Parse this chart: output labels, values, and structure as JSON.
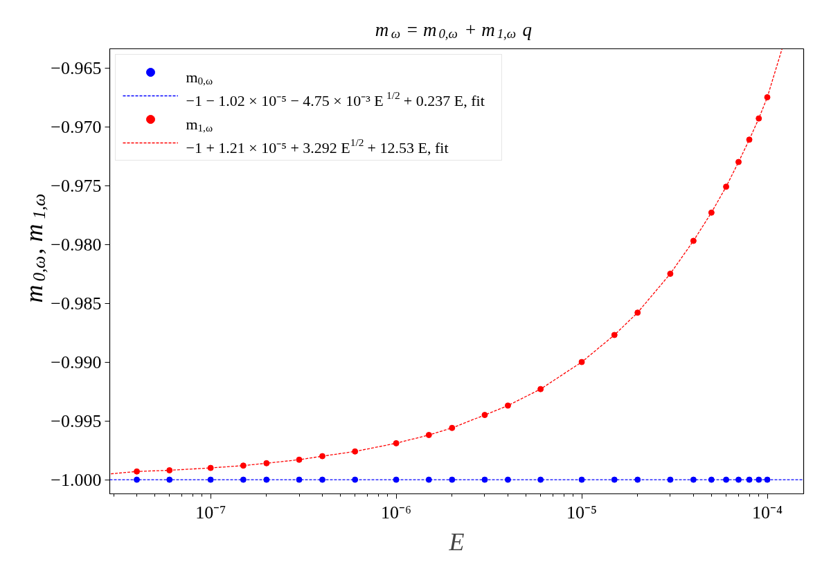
{
  "chart_data": {
    "type": "scatter",
    "title": "m$_{ω}$ = m$_{0,ω}$ + m$_{1,ω}$ q",
    "xlabel": "E",
    "ylabel": "m$_{0,ω}$, m$_{1,ω}$",
    "log": "x",
    "grid": false,
    "legend": "top left",
    "marker": "circle",
    "xlim": [
      2.86e-08,
      0.000157
    ],
    "ylim": [
      -1.0012,
      -0.96338
    ],
    "xticks": [
      {
        "value": 1e-07,
        "label": "10⁻⁷"
      },
      {
        "value": 1e-06,
        "label": "10⁻⁶"
      },
      {
        "value": 1e-05,
        "label": "10⁻⁵"
      },
      {
        "value": 0.0001,
        "label": "10⁻⁴"
      }
    ],
    "yticks": [
      {
        "value": -1.0,
        "label": "−1.000"
      },
      {
        "value": -0.995,
        "label": "−0.995"
      },
      {
        "value": -0.99,
        "label": "−0.990"
      },
      {
        "value": -0.985,
        "label": "−0.985"
      },
      {
        "value": -0.98,
        "label": "−0.980"
      },
      {
        "value": -0.975,
        "label": "−0.975"
      },
      {
        "value": -0.97,
        "label": "−0.970"
      },
      {
        "value": -0.965,
        "label": "−0.965"
      }
    ],
    "series": [
      {
        "name": "m$_{0,ω}$",
        "color": "#0000ff",
        "x": [
          4e-08,
          6e-08,
          1e-07,
          1.5e-07,
          2e-07,
          3e-07,
          4e-07,
          6e-07,
          1e-06,
          1.5e-06,
          2e-06,
          3e-06,
          4e-06,
          6e-06,
          1e-05,
          1.5e-05,
          2e-05,
          3e-05,
          4e-05,
          5e-05,
          6e-05,
          7e-05,
          8e-05,
          9e-05,
          0.0001
        ],
        "values": [
          -1.0,
          -1.0,
          -1.0,
          -1.0,
          -1.0,
          -1.0,
          -1.0,
          -1.0,
          -1.0,
          -1.0,
          -1.0,
          -1.0,
          -1.0,
          -1.0,
          -1.0,
          -1.0,
          -1.0,
          -1.0,
          -1.0,
          -1.0,
          -1.0,
          -1.0,
          -1.0,
          -1.0,
          -1.0
        ]
      },
      {
        "type": "line",
        "line_style": "dashed",
        "marker": "none",
        "name": "−1 − 1.02 × 10⁻⁵ − 4.75 × 10⁻³ E$^{1/2}$ + 0.237 E, fit",
        "color": "#0000ff",
        "x": [
          2.86e-08,
          0.000157
        ],
        "values": [
          -1.0,
          -1.0
        ]
      },
      {
        "name": "m$_{1,ω}$",
        "color": "#ff0000",
        "x": [
          4e-08,
          6e-08,
          1e-07,
          1.5e-07,
          2e-07,
          3e-07,
          4e-07,
          6e-07,
          1e-06,
          1.5e-06,
          2e-06,
          3e-06,
          4e-06,
          6e-06,
          1e-05,
          1.5e-05,
          2e-05,
          3e-05,
          4e-05,
          5e-05,
          6e-05,
          7e-05,
          8e-05,
          9e-05,
          0.0001
        ],
        "values": [
          -0.9993,
          -0.9992,
          -0.999,
          -0.9988,
          -0.9986,
          -0.9983,
          -0.998,
          -0.9976,
          -0.9969,
          -0.9962,
          -0.9956,
          -0.9945,
          -0.9937,
          -0.9923,
          -0.99,
          -0.9877,
          -0.9858,
          -0.9825,
          -0.9797,
          -0.9773,
          -0.9751,
          -0.973,
          -0.9711,
          -0.9693,
          -0.9675
        ]
      },
      {
        "type": "line",
        "line_style": "dashed",
        "marker": "none",
        "name": "−1 + 1.21 × 10⁻⁵ + 3.292 E$^{1/2}$ + 12.53 E, fit",
        "color": "#ff0000",
        "x": [
          2.9e-08,
          4e-08,
          6e-08,
          1e-07,
          1.5e-07,
          2e-07,
          3e-07,
          4e-07,
          6e-07,
          1e-06,
          1.5e-06,
          2e-06,
          3e-06,
          4e-06,
          6e-06,
          1e-05,
          1.5e-05,
          2e-05,
          3e-05,
          4e-05,
          5e-05,
          6e-05,
          7e-05,
          8e-05,
          9e-05,
          0.0001,
          0.00012
        ],
        "values": [
          -0.9995,
          -0.9993,
          -0.9992,
          -0.999,
          -0.9988,
          -0.9986,
          -0.9983,
          -0.998,
          -0.9976,
          -0.9969,
          -0.9962,
          -0.9956,
          -0.9945,
          -0.9937,
          -0.9923,
          -0.99,
          -0.9877,
          -0.9858,
          -0.9825,
          -0.9797,
          -0.9773,
          -0.9751,
          -0.973,
          -0.9711,
          -0.9693,
          -0.9675,
          -0.9634
        ]
      }
    ]
  }
}
